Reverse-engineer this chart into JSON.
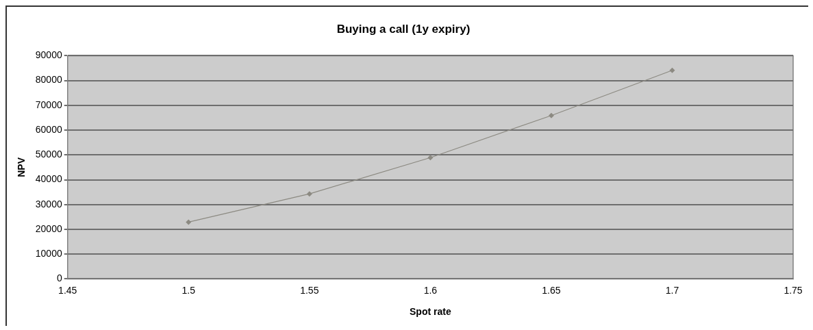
{
  "chart_data": {
    "type": "line",
    "title": "Buying a call (1y expiry)",
    "xlabel": "Spot rate",
    "ylabel": "NPV",
    "x": [
      1.5,
      1.55,
      1.6,
      1.65,
      1.7
    ],
    "series": [
      {
        "color": "#8c8a82",
        "values": [
          22900,
          34300,
          48900,
          65900,
          84100
        ]
      }
    ],
    "xlim": [
      1.45,
      1.75
    ],
    "xticks": [
      1.45,
      1.5,
      1.55,
      1.6,
      1.65,
      1.7,
      1.75
    ],
    "ylim": [
      0,
      90000
    ],
    "yticks": [
      0,
      10000,
      20000,
      30000,
      40000,
      50000,
      60000,
      70000,
      80000,
      90000
    ],
    "grid": "y",
    "marker": "diamond",
    "line_style": "solid",
    "legend": false
  }
}
